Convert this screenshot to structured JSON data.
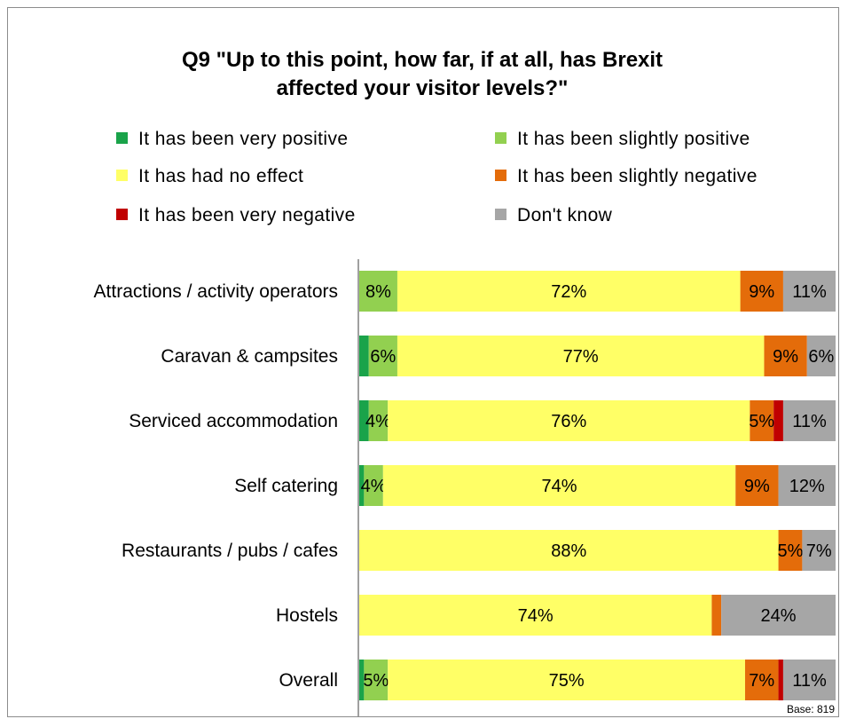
{
  "chart_data": {
    "type": "bar",
    "orientation": "horizontal",
    "stacked": "100%",
    "title": "Q9 \"Up to this point, how far, if at all, has Brexit affected your visitor levels?\"",
    "title_lines": [
      "Q9 \"Up to this point, how far, if at all, has Brexit",
      "affected your visitor levels?\""
    ],
    "categories": [
      "Attractions / activity operators",
      "Caravan & campsites",
      "Serviced accommodation",
      "Self catering",
      "Restaurants / pubs / cafes",
      "Hostels",
      "Overall"
    ],
    "series": [
      {
        "name": "It has been very positive",
        "color": "#1aa34a",
        "values": [
          0,
          2,
          2,
          1,
          0,
          0,
          1
        ]
      },
      {
        "name": "It has been slightly positive",
        "color": "#92d050",
        "values": [
          8,
          6,
          4,
          4,
          0,
          0,
          5
        ]
      },
      {
        "name": "It has had no effect",
        "color": "#ffff66",
        "values": [
          72,
          77,
          76,
          74,
          88,
          74,
          75
        ]
      },
      {
        "name": "It has been slightly negative",
        "color": "#e46c0a",
        "values": [
          9,
          9,
          5,
          9,
          5,
          2,
          7
        ]
      },
      {
        "name": "It has been very negative",
        "color": "#c00000",
        "values": [
          0,
          0,
          2,
          0,
          0,
          0,
          1
        ]
      },
      {
        "name": "Don't know",
        "color": "#a6a6a6",
        "values": [
          11,
          6,
          11,
          12,
          7,
          24,
          11
        ]
      }
    ],
    "data_labels": [
      [
        null,
        "8%",
        "72%",
        "9%",
        null,
        "11%"
      ],
      [
        null,
        "6%",
        "77%",
        "9%",
        null,
        "6%"
      ],
      [
        null,
        "4%",
        "76%",
        "5%",
        null,
        "11%"
      ],
      [
        null,
        "4%",
        "74%",
        "9%",
        null,
        "12%"
      ],
      [
        null,
        null,
        "88%",
        "5%",
        null,
        "7%"
      ],
      [
        null,
        null,
        "74%",
        null,
        null,
        "24%"
      ],
      [
        null,
        "5%",
        "75%",
        "7%",
        null,
        "11%"
      ]
    ],
    "xlim": [
      0,
      100
    ],
    "legend_position": "top",
    "grid": false
  },
  "footnote": "Base: 819"
}
